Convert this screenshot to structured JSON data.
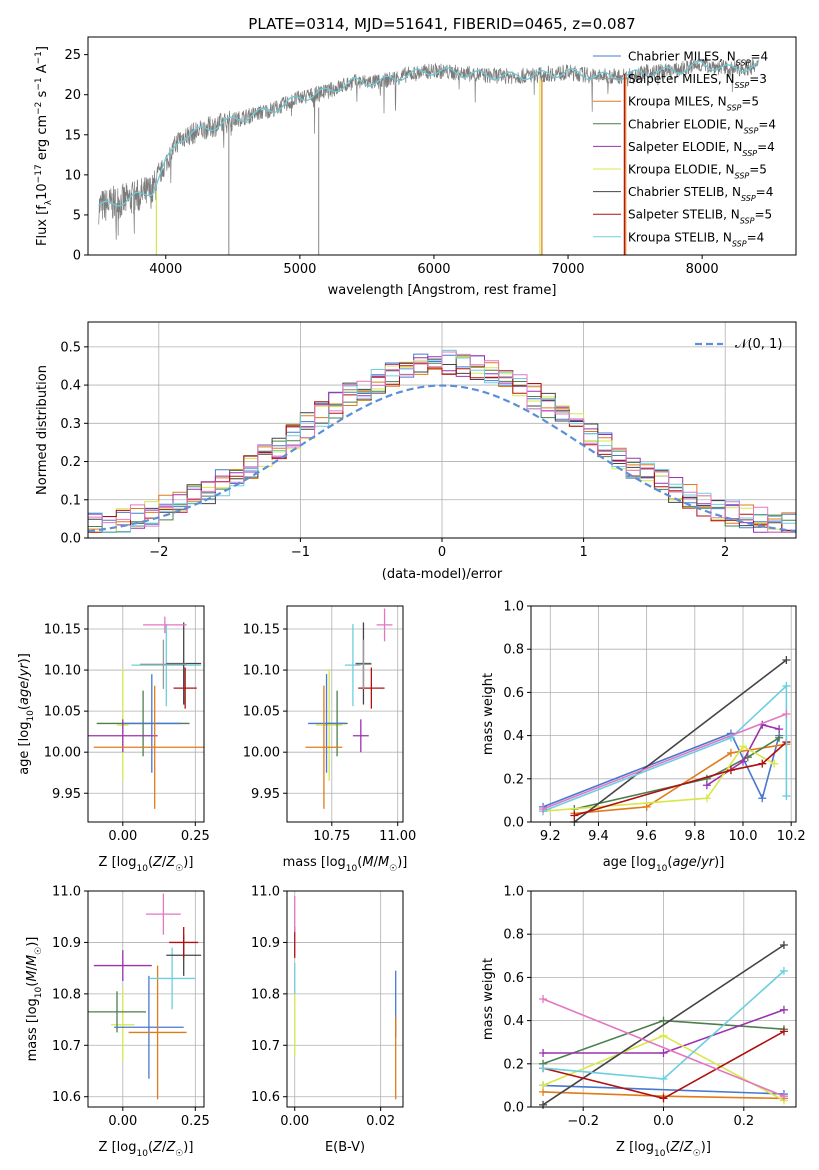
{
  "figure_title": "PLATE=0314, MJD=51641, FIBERID=0465, z=0.087",
  "colors": {
    "Chabrier MILES": "#4878cf",
    "Salpeter MILES": "#9a9a9a",
    "Kroupa MILES": "#e07b1a",
    "Chabrier ELODIE": "#4c7f4c",
    "Salpeter ELODIE": "#9b30b0",
    "Kroupa ELODIE": "#d8e84a",
    "Chabrier STELIB": "#444444",
    "Salpeter STELIB": "#b01010",
    "Kroupa STELIB": "#6ccfe0",
    "normal_curve": "#5b8fd8",
    "pink_model": "#e377c2"
  },
  "chart_data": [
    {
      "id": "spectrum",
      "type": "line",
      "title": "PLATE=0314, MJD=51641, FIBERID=0465, z=0.087",
      "xlabel": "wavelength [Angstrom, rest frame]",
      "ylabel_parts": [
        "Flux [f",
        "λ",
        "10",
        "−17",
        " erg cm",
        "−2",
        " s",
        "−1",
        " A",
        "−1",
        "]"
      ],
      "xlim": [
        3420,
        8700
      ],
      "ylim": [
        0,
        27.2
      ],
      "xticks": [
        "4000",
        "5000",
        "6000",
        "7000",
        "8000"
      ],
      "yticks": [
        "0",
        "5",
        "10",
        "15",
        "20",
        "25"
      ],
      "grid": false,
      "legend_position": "upper right",
      "legend": [
        {
          "name": "Chabrier MILES",
          "nssp": "4"
        },
        {
          "name": "Salpeter MILES",
          "nssp": "3"
        },
        {
          "name": "Kroupa MILES",
          "nssp": "5"
        },
        {
          "name": "Chabrier ELODIE",
          "nssp": "4"
        },
        {
          "name": "Salpeter ELODIE",
          "nssp": "4"
        },
        {
          "name": "Kroupa ELODIE",
          "nssp": "5"
        },
        {
          "name": "Chabrier STELIB",
          "nssp": "4"
        },
        {
          "name": "Salpeter STELIB",
          "nssp": "5"
        },
        {
          "name": "Kroupa STELIB",
          "nssp": "4"
        }
      ],
      "continuum": {
        "x": [
          3500,
          3700,
          3900,
          4000,
          4100,
          4300,
          4500,
          4800,
          5000,
          5200,
          5400,
          5600,
          5800,
          6000,
          6200,
          6400,
          6600,
          6800,
          7000,
          7200,
          7400,
          7600,
          7800,
          8000,
          8200,
          8400
        ],
        "y": [
          6.0,
          6.8,
          8.0,
          11.5,
          14.5,
          15.8,
          16.8,
          18.2,
          19.6,
          20.4,
          21.6,
          21.6,
          22.5,
          23.0,
          22.7,
          22.4,
          22.3,
          22.5,
          22.8,
          22.3,
          22.3,
          22.8,
          23.0,
          23.8,
          23.2,
          23.5
        ]
      },
      "drop_lines": [
        {
          "x": 3930,
          "y_from": 8.0,
          "series": "Kroupa ELODIE"
        },
        {
          "x": 4470,
          "y_from": 16.2,
          "series": "Salpeter MILES"
        },
        {
          "x": 5140,
          "y_from": 18.4,
          "series": "Salpeter MILES"
        },
        {
          "x": 6790,
          "y_from": 22.0,
          "series": "Kroupa ELODIE"
        },
        {
          "x": 6805,
          "y_from": 21.8,
          "series": "Kroupa MILES"
        },
        {
          "x": 7420,
          "y_from": 22.6,
          "series": "Salpeter STELIB"
        },
        {
          "x": 7430,
          "y_from": 22.2,
          "series": "Kroupa MILES"
        }
      ]
    },
    {
      "id": "residuals",
      "type": "histogram",
      "xlabel": "(data-model)/error",
      "ylabel": "Normed distribution",
      "xlim": [
        -2.5,
        2.5
      ],
      "ylim": [
        0,
        0.565
      ],
      "xticks": [
        "−2",
        "−1",
        "0",
        "1",
        "2"
      ],
      "yticks": [
        "0.0",
        "0.1",
        "0.2",
        "0.3",
        "0.4",
        "0.5"
      ],
      "grid": true,
      "legend": [
        "𝒩(0, 1)"
      ],
      "legend_position": "upper right",
      "bin_width": 0.1,
      "reference_curve": "normal(0,1)"
    },
    {
      "id": "age_vs_Z",
      "type": "errorbar",
      "xlabel": "Z [log10(Z/Z☉)]",
      "ylabel": "age  [log10(age/yr)]",
      "xlim": [
        -0.12,
        0.28
      ],
      "ylim": [
        9.915,
        10.178
      ],
      "xticks": [
        "0.00",
        "0.25"
      ],
      "yticks": [
        "9.95",
        "10.00",
        "10.05",
        "10.10",
        "10.15"
      ],
      "grid": true,
      "points": [
        {
          "series": "Kroupa ELODIE",
          "x": 0.0,
          "xerr": 0.02,
          "y": 10.033,
          "yerr": 0.068
        },
        {
          "series": "Chabrier ELODIE",
          "x": 0.07,
          "xerr": 0.16,
          "y": 10.035,
          "yerr": 0.04
        },
        {
          "series": "Chabrier MILES",
          "x": 0.1,
          "xerr": 0.1,
          "y": 10.035,
          "yerr": 0.06
        },
        {
          "series": "Salpeter ELODIE",
          "x": 0.0,
          "xerr": 0.12,
          "y": 10.02,
          "yerr": 0.02
        },
        {
          "series": "Kroupa MILES",
          "x": 0.11,
          "xerr": 0.21,
          "y": 10.006,
          "yerr": 0.075
        },
        {
          "series": "Kroupa STELIB",
          "x": 0.15,
          "xerr": 0.12,
          "y": 10.106,
          "yerr": 0.05
        },
        {
          "series": "Chabrier STELIB",
          "x": 0.21,
          "xerr": 0.06,
          "y": 10.108,
          "yerr": 0.05
        },
        {
          "series": "Salpeter STELIB",
          "x": 0.215,
          "xerr": 0.04,
          "y": 10.078,
          "yerr": 0.025
        },
        {
          "series": "Salpeter MILES",
          "x": 0.14,
          "xerr": 0.08,
          "y": 10.107,
          "yerr": 0.03
        },
        {
          "series": "pink_model",
          "x": 0.145,
          "xerr": 0.075,
          "y": 10.155,
          "yerr": 0.01
        }
      ]
    },
    {
      "id": "age_vs_mass",
      "type": "errorbar",
      "xlabel": "mass [log10(M/M☉)]",
      "ylabel": "",
      "xlim": [
        10.58,
        11.02
      ],
      "ylim": [
        9.915,
        10.178
      ],
      "xticks": [
        "10.75",
        "11.00"
      ],
      "yticks": [
        "9.95",
        "10.00",
        "10.05",
        "10.10",
        "10.15"
      ],
      "grid": true,
      "points": [
        {
          "series": "Kroupa ELODIE",
          "x": 10.74,
          "xerr": 0.05,
          "y": 10.033,
          "yerr": 0.068
        },
        {
          "series": "Chabrier ELODIE",
          "x": 10.77,
          "xerr": 0.04,
          "y": 10.035,
          "yerr": 0.04
        },
        {
          "series": "Chabrier MILES",
          "x": 10.73,
          "xerr": 0.07,
          "y": 10.035,
          "yerr": 0.06
        },
        {
          "series": "Salpeter ELODIE",
          "x": 10.86,
          "xerr": 0.03,
          "y": 10.02,
          "yerr": 0.02
        },
        {
          "series": "Kroupa MILES",
          "x": 10.72,
          "xerr": 0.07,
          "y": 10.006,
          "yerr": 0.075
        },
        {
          "series": "Kroupa STELIB",
          "x": 10.83,
          "xerr": 0.03,
          "y": 10.106,
          "yerr": 0.05
        },
        {
          "series": "Chabrier STELIB",
          "x": 10.87,
          "xerr": 0.03,
          "y": 10.108,
          "yerr": 0.05
        },
        {
          "series": "Salpeter STELIB",
          "x": 10.9,
          "xerr": 0.05,
          "y": 10.078,
          "yerr": 0.025
        },
        {
          "series": "Salpeter MILES",
          "x": 10.87,
          "xerr": 0.03,
          "y": 10.107,
          "yerr": 0.03
        },
        {
          "series": "pink_model",
          "x": 10.95,
          "xerr": 0.03,
          "y": 10.155,
          "yerr": 0.02
        }
      ]
    },
    {
      "id": "massweight_vs_age",
      "type": "line",
      "xlabel": "age  [log10(age/yr)]",
      "ylabel": "mass weight",
      "xlim": [
        9.12,
        10.22
      ],
      "ylim": [
        0,
        1
      ],
      "xticks": [
        "9.2",
        "9.4",
        "9.6",
        "9.8",
        "10.0",
        "10.2"
      ],
      "yticks": [
        "0.0",
        "0.2",
        "0.4",
        "0.6",
        "0.8",
        "1.0"
      ],
      "grid": true,
      "series": [
        {
          "name": "Chabrier MILES",
          "x": [
            9.17,
            9.95,
            10.08,
            10.15
          ],
          "y": [
            0.07,
            0.41,
            0.11,
            0.4
          ]
        },
        {
          "name": "Kroupa MILES",
          "x": [
            9.3,
            9.6,
            9.95,
            10.18
          ],
          "y": [
            0.04,
            0.07,
            0.32,
            0.36
          ]
        },
        {
          "name": "Chabrier ELODIE",
          "x": [
            9.3,
            9.85,
            10.02,
            10.15
          ],
          "y": [
            0.06,
            0.2,
            0.3,
            0.39
          ]
        },
        {
          "name": "Salpeter ELODIE",
          "x": [
            9.85,
            10.0,
            10.08,
            10.15
          ],
          "y": [
            0.17,
            0.28,
            0.45,
            0.43
          ]
        },
        {
          "name": "Kroupa ELODIE",
          "x": [
            9.17,
            9.85,
            10.0,
            10.13
          ],
          "y": [
            0.05,
            0.11,
            0.35,
            0.27
          ]
        },
        {
          "name": "Chabrier STELIB",
          "x": [
            9.3,
            10.18
          ],
          "y": [
            0.0,
            0.75
          ]
        },
        {
          "name": "Salpeter STELIB",
          "x": [
            9.3,
            9.95,
            10.08,
            10.18
          ],
          "y": [
            0.03,
            0.24,
            0.27,
            0.37
          ]
        },
        {
          "name": "Kroupa STELIB",
          "x": [
            9.17,
            9.95,
            10.18,
            10.18
          ],
          "y": [
            0.05,
            0.39,
            0.63,
            0.12
          ]
        },
        {
          "name": "pink_model",
          "x": [
            9.17,
            10.18
          ],
          "y": [
            0.06,
            0.5
          ]
        }
      ]
    },
    {
      "id": "mass_vs_Z",
      "type": "errorbar",
      "xlabel": "Z [log10(Z/Z☉)]",
      "ylabel": "mass [log10(M/M☉)]",
      "xlim": [
        -0.12,
        0.28
      ],
      "ylim": [
        10.58,
        11.0
      ],
      "xticks": [
        "0.00",
        "0.25"
      ],
      "yticks": [
        "10.6",
        "10.7",
        "10.8",
        "10.9",
        "11.0"
      ],
      "grid": true,
      "points": [
        {
          "series": "Kroupa ELODIE",
          "x": 0.0,
          "xerr": 0.04,
          "y": 10.74,
          "yerr": 0.07
        },
        {
          "series": "Chabrier ELODIE",
          "x": -0.02,
          "xerr": 0.1,
          "y": 10.765,
          "yerr": 0.04
        },
        {
          "series": "Chabrier MILES",
          "x": 0.09,
          "xerr": 0.12,
          "y": 10.735,
          "yerr": 0.1
        },
        {
          "series": "Kroupa MILES",
          "x": 0.12,
          "xerr": 0.1,
          "y": 10.725,
          "yerr": 0.13
        },
        {
          "series": "Salpeter ELODIE",
          "x": 0.0,
          "xerr": 0.1,
          "y": 10.855,
          "yerr": 0.03
        },
        {
          "series": "Kroupa STELIB",
          "x": 0.17,
          "xerr": 0.08,
          "y": 10.83,
          "yerr": 0.06
        },
        {
          "series": "Chabrier STELIB",
          "x": 0.21,
          "xerr": 0.06,
          "y": 10.875,
          "yerr": 0.04
        },
        {
          "series": "Salpeter STELIB",
          "x": 0.21,
          "xerr": 0.05,
          "y": 10.9,
          "yerr": 0.03
        },
        {
          "series": "pink_model",
          "x": 0.14,
          "xerr": 0.06,
          "y": 10.955,
          "yerr": 0.04
        }
      ]
    },
    {
      "id": "mass_vs_ebv",
      "type": "errorbar",
      "xlabel": "E(B-V)",
      "ylabel": "",
      "xlim": [
        -0.0018,
        0.0252
      ],
      "ylim": [
        10.58,
        11.0
      ],
      "xticks": [
        "0.00",
        "0.02"
      ],
      "yticks": [
        "10.6",
        "10.7",
        "10.8",
        "10.9",
        "11.0"
      ],
      "grid": true,
      "points": [
        {
          "series": "Kroupa ELODIE",
          "x": 0.0,
          "xerr": 0,
          "y": 10.74,
          "yerr": 0.06
        },
        {
          "series": "Kroupa STELIB",
          "x": 0.0,
          "xerr": 0,
          "y": 10.83,
          "yerr": 0.03
        },
        {
          "series": "Salpeter STELIB",
          "x": 0.0,
          "xerr": 0,
          "y": 10.9,
          "yerr": 0.03
        },
        {
          "series": "pink_model",
          "x": 0.0,
          "xerr": 0,
          "y": 10.955,
          "yerr": 0.035
        },
        {
          "series": "Chabrier MILES",
          "x": 0.0235,
          "xerr": 0,
          "y": 10.78,
          "yerr": 0.065
        },
        {
          "series": "Kroupa MILES",
          "x": 0.0235,
          "xerr": 0,
          "y": 10.675,
          "yerr": 0.08
        }
      ]
    },
    {
      "id": "massweight_vs_Z",
      "type": "line",
      "xlabel": "Z [log10(Z/Z☉)]",
      "ylabel": "mass weight",
      "xlim": [
        -0.33,
        0.33
      ],
      "ylim": [
        0,
        1
      ],
      "xticks": [
        "−0.2",
        "0.0",
        "0.2"
      ],
      "yticks": [
        "0.0",
        "0.2",
        "0.4",
        "0.6",
        "0.8",
        "1.0"
      ],
      "grid": true,
      "series": [
        {
          "name": "Chabrier MILES",
          "x": [
            -0.3,
            0.3
          ],
          "y": [
            0.1,
            0.06
          ]
        },
        {
          "name": "Kroupa MILES",
          "x": [
            -0.3,
            0.0,
            0.3
          ],
          "y": [
            0.07,
            0.05,
            0.04
          ]
        },
        {
          "name": "Chabrier ELODIE",
          "x": [
            -0.3,
            0.0,
            0.3
          ],
          "y": [
            0.2,
            0.4,
            0.36
          ]
        },
        {
          "name": "Salpeter ELODIE",
          "x": [
            -0.3,
            0.0,
            0.3
          ],
          "y": [
            0.25,
            0.25,
            0.45
          ]
        },
        {
          "name": "Kroupa ELODIE",
          "x": [
            -0.3,
            0.0,
            0.3
          ],
          "y": [
            0.1,
            0.33,
            0.03
          ]
        },
        {
          "name": "Chabrier STELIB",
          "x": [
            -0.3,
            0.3
          ],
          "y": [
            0.01,
            0.75
          ]
        },
        {
          "name": "Salpeter STELIB",
          "x": [
            -0.3,
            0.0,
            0.3
          ],
          "y": [
            0.18,
            0.04,
            0.35
          ]
        },
        {
          "name": "Kroupa STELIB",
          "x": [
            -0.3,
            0.0,
            0.3
          ],
          "y": [
            0.18,
            0.13,
            0.63
          ]
        },
        {
          "name": "pink_model",
          "x": [
            -0.3,
            0.3
          ],
          "y": [
            0.5,
            0.05
          ]
        }
      ]
    }
  ]
}
